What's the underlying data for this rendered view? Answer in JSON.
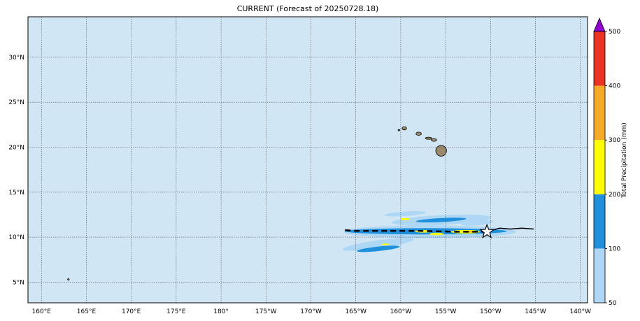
{
  "title": "CURRENT (Forecast of 20250728.18)",
  "colors": {
    "ocean": "#d0e6f5",
    "grid": "#555555",
    "land": "#9a8a6a"
  },
  "map": {
    "lon_range": [
      158.5,
      220.8
    ],
    "lat_range": [
      2.7,
      34.5
    ],
    "x_ticks": [
      {
        "lon": 160,
        "label": "160°E"
      },
      {
        "lon": 165,
        "label": "165°E"
      },
      {
        "lon": 170,
        "label": "170°E"
      },
      {
        "lon": 175,
        "label": "175°E"
      },
      {
        "lon": 180,
        "label": "180°"
      },
      {
        "lon": 185,
        "label": "175°W"
      },
      {
        "lon": 190,
        "label": "170°W"
      },
      {
        "lon": 195,
        "label": "165°W"
      },
      {
        "lon": 200,
        "label": "160°W"
      },
      {
        "lon": 205,
        "label": "155°W"
      },
      {
        "lon": 210,
        "label": "150°W"
      },
      {
        "lon": 215,
        "label": "145°W"
      },
      {
        "lon": 220,
        "label": "140°W"
      }
    ],
    "y_ticks": [
      {
        "lat": 5,
        "label": "5°N"
      },
      {
        "lat": 10,
        "label": "10°N"
      },
      {
        "lat": 15,
        "label": "15°N"
      },
      {
        "lat": 20,
        "label": "20°N"
      },
      {
        "lat": 25,
        "label": "25°N"
      },
      {
        "lat": 30,
        "label": "30°N"
      }
    ]
  },
  "colorbar": {
    "label": "Total Precipitation (mm)",
    "levels": [
      50,
      100,
      200,
      300,
      400,
      500
    ],
    "colors": [
      "#aed6f5",
      "#1e90dc",
      "#ffff00",
      "#f5aa28",
      "#eb3223"
    ],
    "extend_color": "#9400d3"
  },
  "track": {
    "forecast": [
      [
        214.8,
        10.9
      ],
      [
        213.5,
        11.0
      ],
      [
        212.2,
        10.9
      ],
      [
        211.0,
        11.0
      ],
      [
        210.3,
        10.8
      ],
      [
        209.6,
        10.6
      ]
    ],
    "past": [
      [
        209.6,
        10.6
      ],
      [
        206.0,
        10.6
      ],
      [
        202.0,
        10.7
      ],
      [
        198.0,
        10.7
      ],
      [
        195.0,
        10.7
      ],
      [
        193.5,
        10.8
      ]
    ],
    "storm_position": [
      209.6,
      10.6
    ]
  },
  "rain_swaths": [
    {
      "level": 0,
      "cx": 203.2,
      "cy": 10.6,
      "rx": 9.6,
      "ry": 0.7,
      "rot": 0
    },
    {
      "level": 0,
      "cx": 204.5,
      "cy": 11.9,
      "rx": 5.5,
      "ry": 0.55,
      "rot": -3
    },
    {
      "level": 0,
      "cx": 197.5,
      "cy": 9.2,
      "rx": 4.0,
      "ry": 0.45,
      "rot": -8
    },
    {
      "level": 0,
      "cx": 200.5,
      "cy": 12.6,
      "rx": 2.3,
      "ry": 0.25,
      "rot": -4
    },
    {
      "level": 0,
      "cx": 208.5,
      "cy": 11.6,
      "rx": 1.8,
      "ry": 0.3,
      "rot": -5
    },
    {
      "level": 1,
      "cx": 202.8,
      "cy": 10.65,
      "rx": 9.0,
      "ry": 0.35,
      "rot": 0
    },
    {
      "level": 1,
      "cx": 197.5,
      "cy": 8.7,
      "rx": 2.4,
      "ry": 0.25,
      "rot": -6
    },
    {
      "level": 1,
      "cx": 204.5,
      "cy": 11.9,
      "rx": 2.8,
      "ry": 0.22,
      "rot": -3
    },
    {
      "level": 2,
      "cx": 207.2,
      "cy": 10.6,
      "rx": 1.6,
      "ry": 0.2,
      "rot": 0
    },
    {
      "level": 2,
      "cx": 202.5,
      "cy": 10.65,
      "rx": 0.9,
      "ry": 0.15,
      "rot": 0
    },
    {
      "level": 2,
      "cx": 204.0,
      "cy": 10.35,
      "rx": 0.8,
      "ry": 0.14,
      "rot": 0
    },
    {
      "level": 2,
      "cx": 200.5,
      "cy": 12.0,
      "rx": 0.5,
      "ry": 0.12,
      "rot": 0
    },
    {
      "level": 2,
      "cx": 198.3,
      "cy": 9.2,
      "rx": 0.4,
      "ry": 0.1,
      "rot": 0
    },
    {
      "level": 3,
      "cx": 207.8,
      "cy": 10.6,
      "rx": 0.5,
      "ry": 0.1,
      "rot": 0
    }
  ],
  "islands": [
    {
      "cx": 204.5,
      "cy": 19.6,
      "rx": 0.6,
      "ry": 0.6
    },
    {
      "cx": 203.7,
      "cy": 20.8,
      "rx": 0.3,
      "ry": 0.15
    },
    {
      "cx": 203.1,
      "cy": 21.0,
      "rx": 0.35,
      "ry": 0.12
    },
    {
      "cx": 202.0,
      "cy": 21.5,
      "rx": 0.3,
      "ry": 0.18
    },
    {
      "cx": 200.4,
      "cy": 22.1,
      "rx": 0.25,
      "ry": 0.18
    },
    {
      "cx": 199.8,
      "cy": 21.9,
      "rx": 0.1,
      "ry": 0.08
    },
    {
      "cx": 163.0,
      "cy": 5.3,
      "rx": 0.08,
      "ry": 0.06
    }
  ]
}
